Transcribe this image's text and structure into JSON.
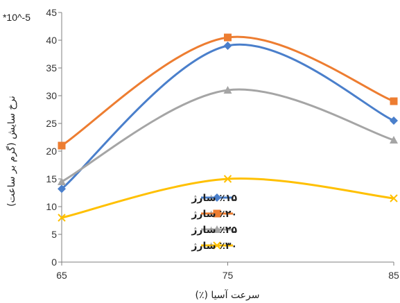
{
  "chart_data": {
    "type": "line",
    "x": [
      65,
      75,
      85
    ],
    "xlim": [
      65,
      85
    ],
    "ylim": [
      0,
      45
    ],
    "x_ticks": [
      "65",
      "75",
      "85"
    ],
    "y_ticks": [
      "0",
      "5",
      "10",
      "15",
      "20",
      "25",
      "30",
      "35",
      "40",
      "45"
    ],
    "xlabel": "سرعت آسیا (٪)",
    "ylabel": "نرخ سایش (گرم بر ساعت)",
    "multiplier": "*10^-5",
    "legend_position": "center-bottom",
    "smooth": true,
    "grid": false,
    "series": [
      {
        "name": "٪۱۵ شارژ",
        "values": [
          13.2,
          39.0,
          25.5
        ],
        "color": "#4a7fcb",
        "marker": "diamond"
      },
      {
        "name": "٪۲۰ شارژ",
        "values": [
          21.0,
          40.5,
          29.0
        ],
        "color": "#ed7d31",
        "marker": "square"
      },
      {
        "name": "٪۲۵ شارژ",
        "values": [
          14.5,
          31.0,
          22.0
        ],
        "color": "#a5a5a5",
        "marker": "triangle"
      },
      {
        "name": "٪۳۰ شارژ",
        "values": [
          8.0,
          15.0,
          11.5
        ],
        "color": "#ffc000",
        "marker": "x"
      }
    ]
  }
}
